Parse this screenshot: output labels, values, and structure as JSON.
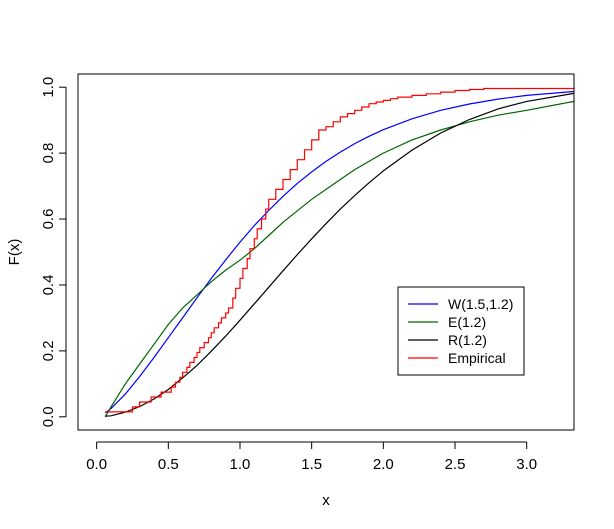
{
  "chart_data": {
    "type": "line",
    "title": "",
    "xlabel": "x",
    "ylabel": "F(x)",
    "xlim": [
      -0.13,
      3.33
    ],
    "ylim": [
      -0.04,
      1.04
    ],
    "xticks": [
      0.0,
      0.5,
      1.0,
      1.5,
      2.0,
      2.5,
      3.0
    ],
    "xtick_labels": [
      "0.0",
      "0.5",
      "1.0",
      "1.5",
      "2.0",
      "2.5",
      "3.0"
    ],
    "yticks": [
      0.0,
      0.2,
      0.4,
      0.6,
      0.8,
      1.0
    ],
    "ytick_labels": [
      "0.0",
      "0.2",
      "0.4",
      "0.6",
      "0.8",
      "1.0"
    ],
    "grid": false,
    "legend_position": "center-right",
    "series": [
      {
        "name": "W(1.5,1.2)",
        "color": "#0000ff",
        "x": [
          0.06,
          0.1,
          0.2,
          0.3,
          0.4,
          0.5,
          0.6,
          0.7,
          0.8,
          0.9,
          1.0,
          1.1,
          1.2,
          1.3,
          1.4,
          1.5,
          1.6,
          1.7,
          1.8,
          1.9,
          2.0,
          2.2,
          2.4,
          2.6,
          2.8,
          3.0,
          3.33
        ],
        "y": [
          0.012,
          0.025,
          0.069,
          0.122,
          0.18,
          0.24,
          0.3,
          0.361,
          0.42,
          0.476,
          0.53,
          0.58,
          0.626,
          0.669,
          0.708,
          0.743,
          0.775,
          0.803,
          0.829,
          0.851,
          0.871,
          0.904,
          0.93,
          0.949,
          0.964,
          0.975,
          0.987
        ]
      },
      {
        "name": "E(1.2)",
        "color": "#006400",
        "x": [
          0.06,
          0.1,
          0.2,
          0.3,
          0.4,
          0.5,
          0.6,
          0.7,
          0.8,
          0.9,
          1.0,
          1.1,
          1.2,
          1.3,
          1.4,
          1.5,
          1.6,
          1.7,
          1.8,
          1.9,
          2.0,
          2.2,
          2.4,
          2.6,
          2.8,
          3.0,
          3.33
        ],
        "y": [
          0.0,
          0.03,
          0.1,
          0.16,
          0.22,
          0.28,
          0.33,
          0.37,
          0.41,
          0.445,
          0.475,
          0.51,
          0.55,
          0.59,
          0.625,
          0.66,
          0.69,
          0.72,
          0.75,
          0.775,
          0.8,
          0.84,
          0.87,
          0.895,
          0.915,
          0.93,
          0.957
        ]
      },
      {
        "name": "R(1.2)",
        "color": "#000000",
        "x": [
          0.06,
          0.1,
          0.2,
          0.3,
          0.4,
          0.5,
          0.6,
          0.7,
          0.8,
          0.9,
          1.0,
          1.1,
          1.2,
          1.3,
          1.4,
          1.5,
          1.6,
          1.7,
          1.8,
          1.9,
          2.0,
          2.2,
          2.4,
          2.6,
          2.8,
          3.0,
          3.33
        ],
        "y": [
          0.002,
          0.003,
          0.014,
          0.031,
          0.054,
          0.083,
          0.118,
          0.156,
          0.199,
          0.245,
          0.293,
          0.343,
          0.393,
          0.443,
          0.492,
          0.54,
          0.586,
          0.63,
          0.671,
          0.71,
          0.746,
          0.809,
          0.861,
          0.902,
          0.934,
          0.957,
          0.981
        ]
      },
      {
        "name": "Empirical",
        "color": "#ff0000",
        "step": true,
        "x": [
          0.06,
          0.25,
          0.3,
          0.38,
          0.45,
          0.52,
          0.55,
          0.58,
          0.6,
          0.63,
          0.65,
          0.68,
          0.7,
          0.72,
          0.75,
          0.78,
          0.8,
          0.82,
          0.85,
          0.87,
          0.9,
          0.92,
          0.95,
          0.97,
          1.0,
          1.02,
          1.05,
          1.07,
          1.1,
          1.12,
          1.15,
          1.18,
          1.2,
          1.25,
          1.3,
          1.35,
          1.4,
          1.45,
          1.5,
          1.55,
          1.6,
          1.65,
          1.7,
          1.75,
          1.8,
          1.85,
          1.9,
          1.95,
          2.0,
          2.05,
          2.1,
          2.2,
          2.3,
          2.4,
          2.5,
          2.6,
          2.7,
          3.33
        ],
        "y": [
          0.015,
          0.03,
          0.045,
          0.06,
          0.075,
          0.09,
          0.105,
          0.12,
          0.135,
          0.15,
          0.165,
          0.18,
          0.195,
          0.21,
          0.225,
          0.24,
          0.255,
          0.27,
          0.285,
          0.3,
          0.315,
          0.33,
          0.36,
          0.39,
          0.42,
          0.45,
          0.48,
          0.51,
          0.54,
          0.57,
          0.6,
          0.63,
          0.66,
          0.69,
          0.72,
          0.75,
          0.78,
          0.81,
          0.84,
          0.87,
          0.88,
          0.895,
          0.91,
          0.92,
          0.93,
          0.94,
          0.95,
          0.955,
          0.96,
          0.965,
          0.97,
          0.975,
          0.98,
          0.985,
          0.99,
          0.993,
          0.996,
          1.0
        ]
      }
    ]
  }
}
